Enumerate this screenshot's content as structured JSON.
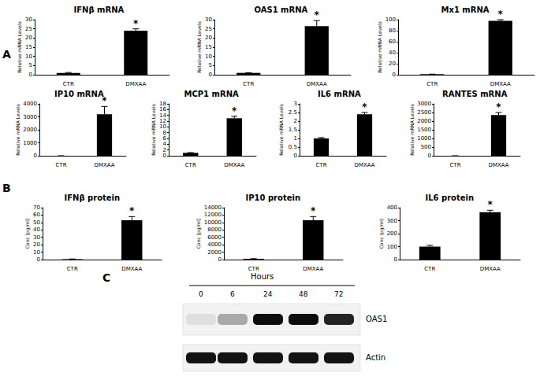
{
  "panel_labels": [
    "A",
    "B"
  ],
  "chart_data": [
    {
      "type": "bar",
      "title": "IFNβ mRNA",
      "y_label": "Relative mRNA Levels",
      "categories": [
        "CTR",
        "DMXAA"
      ],
      "values": [
        1,
        24
      ],
      "errors": [
        0.2,
        1
      ],
      "color": "#000000",
      "ylim": [
        0,
        30
      ],
      "yticks": [
        0,
        5,
        10,
        15,
        20,
        25,
        30
      ],
      "annotations": [
        {
          "category": "DMXAA",
          "text": "*"
        }
      ]
    },
    {
      "type": "bar",
      "title": "OAS1 mRNA",
      "y_label": "Relative mRNA Levels",
      "categories": [
        "CTR",
        "DMXAA"
      ],
      "values": [
        1,
        26.5
      ],
      "errors": [
        0.1,
        3
      ],
      "color": "#000000",
      "ylim": [
        0,
        30
      ],
      "yticks": [
        0,
        5,
        10,
        15,
        20,
        25,
        30
      ],
      "annotations": [
        {
          "category": "DMXAA",
          "text": "*"
        }
      ]
    },
    {
      "type": "bar",
      "title": "Mx1 mRNA",
      "y_label": "Relative mRNA Levels",
      "categories": [
        "CTR",
        "DMXAA"
      ],
      "values": [
        1,
        98
      ],
      "errors": [
        0.1,
        2
      ],
      "color": "#000000",
      "ylim": [
        0,
        100
      ],
      "yticks": [
        0,
        20,
        40,
        60,
        80,
        100
      ],
      "annotations": [
        {
          "category": "DMXAA",
          "text": "*"
        }
      ]
    },
    {
      "type": "bar",
      "title": "IP10 mRNA",
      "y_label": "Relative mRNA Levels",
      "categories": [
        "CTR",
        "DMXAA"
      ],
      "values": [
        1,
        3200
      ],
      "errors": [
        0.1,
        600
      ],
      "color": "#000000",
      "ylim": [
        0,
        4000
      ],
      "yticks": [
        0,
        1000,
        2000,
        3000,
        4000
      ],
      "annotations": [
        {
          "category": "DMXAA",
          "text": "*"
        }
      ]
    },
    {
      "type": "bar",
      "title": "MCP1 mRNA",
      "y_label": "Relative mRNA Levels",
      "categories": [
        "CTR",
        "DMXAA"
      ],
      "values": [
        1,
        13
      ],
      "errors": [
        0.1,
        0.7
      ],
      "color": "#000000",
      "ylim": [
        0,
        18
      ],
      "yticks": [
        0,
        2,
        4,
        6,
        8,
        10,
        12,
        14,
        16,
        18
      ],
      "annotations": [
        {
          "category": "DMXAA",
          "text": "*"
        }
      ]
    },
    {
      "type": "bar",
      "title": "IL6 mRNA",
      "y_label": "Relative mRNA Levels",
      "categories": [
        "CTR",
        "DMXAA"
      ],
      "values": [
        1,
        2.4
      ],
      "errors": [
        0.05,
        0.1
      ],
      "color": "#000000",
      "ylim": [
        0,
        3
      ],
      "yticks": [
        0,
        0.5,
        1,
        1.5,
        2,
        2.5,
        3
      ],
      "annotations": [
        {
          "category": "DMXAA",
          "text": "*"
        }
      ]
    },
    {
      "type": "bar",
      "title": "RANTES mRNA",
      "y_label": "Relative mRNA Levels",
      "categories": [
        "CTR",
        "DMXAA"
      ],
      "values": [
        1,
        2350
      ],
      "errors": [
        0.1,
        150
      ],
      "color": "#000000",
      "ylim": [
        0,
        3000
      ],
      "yticks": [
        0,
        500,
        1000,
        1500,
        2000,
        2500,
        3000
      ],
      "annotations": [
        {
          "category": "DMXAA",
          "text": "*"
        }
      ]
    },
    {
      "type": "bar",
      "title": "IFNβ protein",
      "y_label": "Conc [pg/ml]",
      "categories": [
        "CTR",
        "DMXAA"
      ],
      "values": [
        0.5,
        53
      ],
      "errors": [
        0.3,
        5
      ],
      "color": "#000000",
      "ylim": [
        0,
        70
      ],
      "yticks": [
        0,
        10,
        20,
        30,
        40,
        50,
        60,
        70
      ],
      "annotations": [
        {
          "category": "DMXAA",
          "text": "*"
        }
      ]
    },
    {
      "type": "bar",
      "title": "IP10 protein",
      "y_label": "Conc [pg/ml]",
      "categories": [
        "CTR",
        "DMXAA"
      ],
      "values": [
        200,
        10600
      ],
      "errors": [
        50,
        1000
      ],
      "color": "#000000",
      "ylim": [
        0,
        14000
      ],
      "yticks": [
        0,
        2000,
        4000,
        6000,
        8000,
        10000,
        12000,
        14000
      ],
      "annotations": [
        {
          "category": "DMXAA",
          "text": "*"
        }
      ]
    },
    {
      "type": "bar",
      "title": "IL6 protein",
      "y_label": "Conc (pg/ml)",
      "categories": [
        "CTR",
        "DMXAA"
      ],
      "values": [
        100,
        365
      ],
      "errors": [
        10,
        15
      ],
      "color": "#000000",
      "ylim": [
        0,
        400
      ],
      "yticks": [
        0,
        100,
        200,
        300,
        400
      ],
      "annotations": [
        {
          "category": "DMXAA",
          "text": "*"
        }
      ]
    }
  ],
  "blot": {
    "label": "C",
    "axis_title": "Hours",
    "lanes": [
      "0",
      "6",
      "24",
      "48",
      "72"
    ],
    "rows": [
      "OAS1",
      "Actin"
    ]
  }
}
